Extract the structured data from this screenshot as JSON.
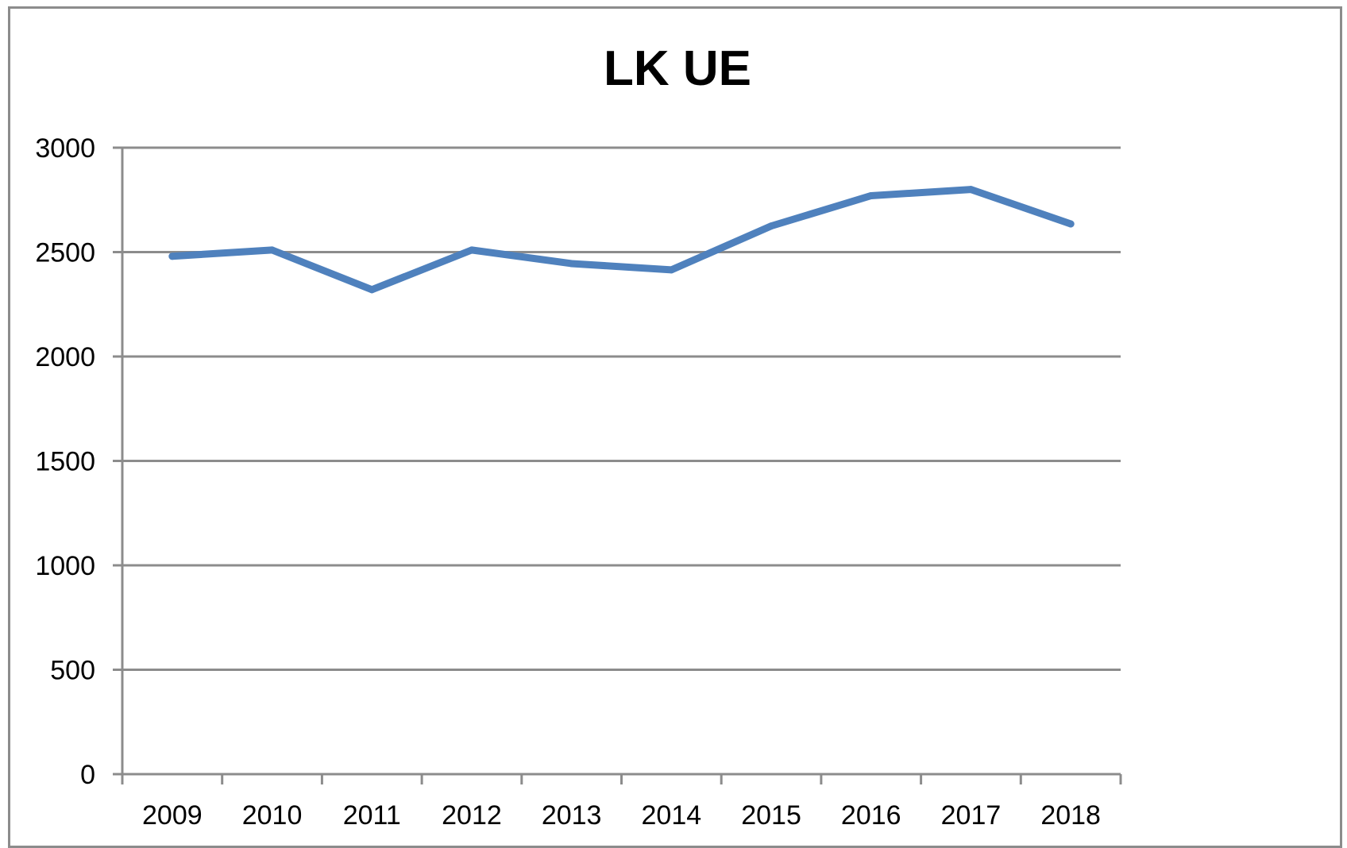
{
  "chart_data": {
    "type": "line",
    "title": "LK UE",
    "xlabel": "",
    "ylabel": "",
    "categories": [
      "2009",
      "2010",
      "2011",
      "2012",
      "2013",
      "2014",
      "2015",
      "2016",
      "2017",
      "2018"
    ],
    "series": [
      {
        "values": [
          2480,
          2510,
          2320,
          2510,
          2445,
          2415,
          2625,
          2770,
          2800,
          2635
        ],
        "color": "#4F81BD"
      }
    ],
    "ylim": [
      0,
      3000
    ],
    "yticks": [
      "0",
      "500",
      "1000",
      "1500",
      "2000",
      "2500",
      "3000"
    ],
    "grid": true,
    "legend": "none",
    "colors": {
      "gridline": "#8c8c8c",
      "axis": "#8c8c8c",
      "frame": "#8c8c8c"
    }
  }
}
